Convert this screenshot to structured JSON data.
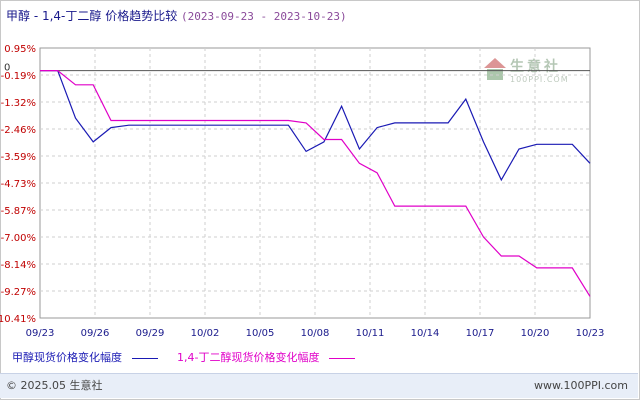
{
  "header": {
    "title": "甲醇 - 1,4-丁二醇 价格趋势比较",
    "date_range": "(2023-09-23 - 2023-10-23)"
  },
  "watermark": {
    "name": "生意社",
    "url": "100PPI.COM"
  },
  "footer": {
    "copyright": "© 2025.05 生意社",
    "site": "www.100PPI.com"
  },
  "colors": {
    "series_1": "#1a1ab4",
    "series_2": "#e000c8",
    "grid": "#cfcfcf",
    "zero_line": "#555555",
    "tick_label_y": "#c00000"
  },
  "chart_data": {
    "type": "line",
    "x_ticks": [
      "09/23",
      "09/26",
      "09/29",
      "10/02",
      "10/05",
      "10/08",
      "10/11",
      "10/14",
      "10/17",
      "10/20",
      "10/23"
    ],
    "y_ticks": [
      "0.95%",
      "-0.19%",
      "-1.32%",
      "-2.46%",
      "-3.59%",
      "-4.73%",
      "-5.87%",
      "-7.00%",
      "-8.14%",
      "-9.27%",
      "-10.41%"
    ],
    "ylim": [
      -10.41,
      0.95
    ],
    "grid": true,
    "legend_position": "bottom",
    "series": [
      {
        "name": "甲醇现货价格变化幅度",
        "color": "#1a1ab4",
        "points": [
          [
            0,
            0
          ],
          [
            1,
            0
          ],
          [
            2,
            -2
          ],
          [
            3,
            -3
          ],
          [
            4,
            -2.4
          ],
          [
            5,
            -2.3
          ],
          [
            14,
            -2.3
          ],
          [
            15,
            -3.4
          ],
          [
            16,
            -3.0
          ],
          [
            17,
            -1.5
          ],
          [
            18,
            -3.3
          ],
          [
            19,
            -2.4
          ],
          [
            20,
            -2.2
          ],
          [
            23,
            -2.2
          ],
          [
            24,
            -1.2
          ],
          [
            25,
            -3.0
          ],
          [
            26,
            -4.6
          ],
          [
            27,
            -3.3
          ],
          [
            28,
            -3.1
          ],
          [
            30,
            -3.1
          ],
          [
            31,
            -3.9
          ]
        ]
      },
      {
        "name": "1,4-丁二醇现货价格变化幅度",
        "color": "#e000c8",
        "points": [
          [
            0,
            0
          ],
          [
            1,
            0
          ],
          [
            2,
            -0.6
          ],
          [
            3,
            -0.6
          ],
          [
            4,
            -2.1
          ],
          [
            14,
            -2.1
          ],
          [
            15,
            -2.2
          ],
          [
            16,
            -2.9
          ],
          [
            17,
            -2.9
          ],
          [
            18,
            -3.9
          ],
          [
            19,
            -4.3
          ],
          [
            20,
            -5.7
          ],
          [
            24,
            -5.7
          ],
          [
            25,
            -7.0
          ],
          [
            26,
            -7.8
          ],
          [
            27,
            -7.8
          ],
          [
            28,
            -8.3
          ],
          [
            30,
            -8.3
          ],
          [
            31,
            -9.5
          ]
        ]
      }
    ]
  }
}
